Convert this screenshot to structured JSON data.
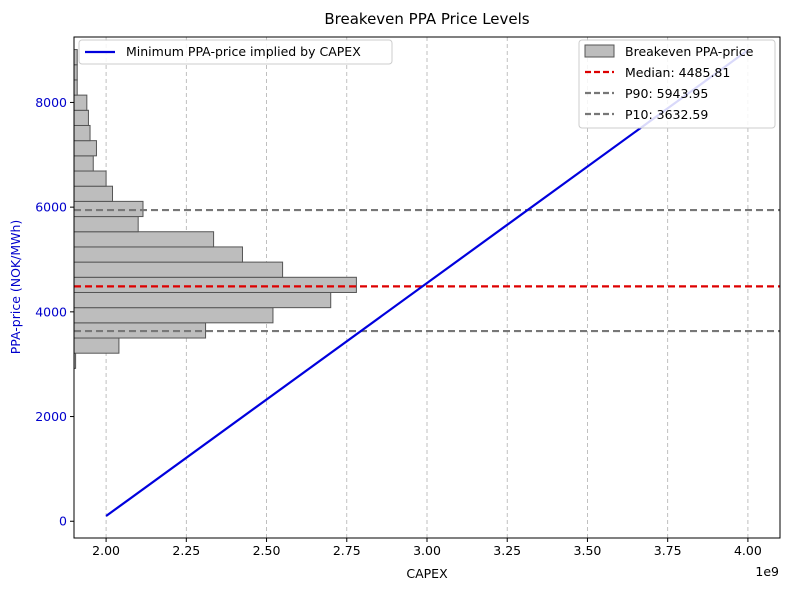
{
  "chart_data": {
    "type": "bar",
    "title": "Breakeven PPA Price Levels",
    "xlabel": "CAPEX",
    "ylabel": "PPA-price (NOK/MWh)",
    "x_offset_label": "1e9",
    "xlim": [
      1.9,
      4.1
    ],
    "ylim": [
      -320,
      9250
    ],
    "xticks": [
      2.0,
      2.25,
      2.5,
      2.75,
      3.0,
      3.25,
      3.5,
      3.75,
      4.0
    ],
    "xtick_labels": [
      "2.00",
      "2.25",
      "2.50",
      "2.75",
      "3.00",
      "3.25",
      "3.50",
      "3.75",
      "4.00"
    ],
    "yticks": [
      0,
      2000,
      4000,
      6000,
      8000
    ],
    "ytick_labels": [
      "0",
      "2000",
      "4000",
      "6000",
      "8000"
    ],
    "grid": "x-dashed",
    "histogram": {
      "name": "Breakeven PPA-price",
      "color": "#bdbdbd",
      "edge_color": "#555555",
      "bin_edges": [
        2920,
        3210,
        3500,
        3790,
        4080,
        4370,
        4660,
        4950,
        5240,
        5530,
        5820,
        6110,
        6400,
        6690,
        6980,
        7270,
        7560,
        7850,
        8140,
        8430,
        8720,
        9010
      ],
      "bar_right_x": [
        1.905,
        2.04,
        2.31,
        2.52,
        2.7,
        2.78,
        2.55,
        2.425,
        2.335,
        2.1,
        2.115,
        2.02,
        2.0,
        1.96,
        1.97,
        1.95,
        1.945,
        1.94,
        1.91,
        1.91,
        1.91
      ]
    },
    "line": {
      "name": "Minimum PPA-price implied by CAPEX",
      "color": "#0000dd",
      "x": [
        2.0,
        4.0
      ],
      "y": [
        100,
        9000
      ]
    },
    "hlines": [
      {
        "name": "Median: 4485.81",
        "y": 4485.81,
        "color": "#dd0000"
      },
      {
        "name": "P90: 5943.95",
        "y": 5943.95,
        "color": "#777777"
      },
      {
        "name": "P10: 3632.59",
        "y": 3632.59,
        "color": "#777777"
      }
    ],
    "legend_left_placement": "upper-left",
    "legend_right_placement": "upper-right"
  }
}
